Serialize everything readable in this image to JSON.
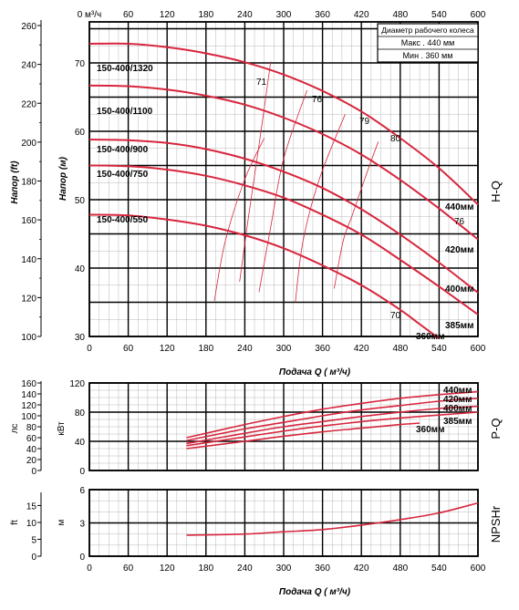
{
  "colors": {
    "curve": "#d7263d",
    "grid_major": "#000000",
    "grid_minor": "#b8b8b8",
    "text": "#000000"
  },
  "chart_data": [
    {
      "id": "hq",
      "type": "line",
      "side_label": "H-Q",
      "x_top_label": "0 м³/ч",
      "x_top_ticks": [
        "0 м³/ч",
        "60",
        "120",
        "180",
        "240",
        "300",
        "360",
        "420",
        "480",
        "540",
        "600"
      ],
      "x_ticks": [
        "0",
        "60",
        "120",
        "180",
        "240",
        "300",
        "360",
        "420",
        "480",
        "540",
        "600"
      ],
      "xlabel": "Подача Q ( м³/ч)",
      "xlim": [
        0,
        600
      ],
      "ylim_m": [
        30,
        75
      ],
      "ylabel_m": "Напор (м)",
      "ylabel_ft": "Напор (ft)",
      "yticks_m": [
        "30",
        "40",
        "50",
        "60",
        "70"
      ],
      "yticks_ft": [
        "100",
        "120",
        "140",
        "160",
        "180",
        "200",
        "220",
        "240",
        "260"
      ],
      "legend_box": {
        "title": "Диаметр рабочего колеса",
        "max": "Макс .   440 мм",
        "min": "Мин .   360 мм"
      },
      "model_labels": [
        "150-400/1320",
        "150-400/1100",
        "150-400/900",
        "150-400/750",
        "150-400/550"
      ],
      "series": [
        {
          "name": "440мм",
          "x": [
            0,
            60,
            120,
            180,
            240,
            300,
            360,
            420,
            480,
            540,
            600
          ],
          "y": [
            72.8,
            72.8,
            72.3,
            71.4,
            70.1,
            68.3,
            65.9,
            62.9,
            59.0,
            54.6,
            49.3
          ]
        },
        {
          "name": "420мм",
          "x": [
            0,
            60,
            120,
            180,
            240,
            300,
            360,
            420,
            480,
            540,
            600
          ],
          "y": [
            66.7,
            66.6,
            66.1,
            65.2,
            63.9,
            62.0,
            59.6,
            56.6,
            52.9,
            48.7,
            44.2
          ]
        },
        {
          "name": "400мм",
          "x": [
            0,
            60,
            120,
            180,
            240,
            300,
            360,
            420,
            480,
            540,
            600
          ],
          "y": [
            58.8,
            58.7,
            58.3,
            57.4,
            56.0,
            54.1,
            51.7,
            48.6,
            44.9,
            40.8,
            36.4
          ]
        },
        {
          "name": "385мм",
          "x": [
            0,
            60,
            120,
            180,
            240,
            300,
            360,
            420,
            480,
            540,
            600
          ],
          "y": [
            55.0,
            54.9,
            54.4,
            53.5,
            52.1,
            50.3,
            47.8,
            44.9,
            41.2,
            37.3,
            33.2
          ]
        },
        {
          "name": "360мм",
          "x": [
            0,
            60,
            120,
            180,
            240,
            300,
            360,
            420,
            480,
            510,
            540
          ],
          "y": [
            47.8,
            47.7,
            47.1,
            46.2,
            44.8,
            42.9,
            40.4,
            37.5,
            33.9,
            31.8,
            29.7
          ]
        }
      ],
      "efficiency_labels": [
        "71",
        "76",
        "79",
        "80",
        "76",
        "70"
      ],
      "efficiency_curves": [
        {
          "name": "70",
          "x": [
            193,
            210,
            240,
            270
          ],
          "y": [
            35.2,
            44.0,
            53.0,
            59.0
          ]
        },
        {
          "name": "71",
          "x": [
            232,
            245,
            262,
            280
          ],
          "y": [
            38.0,
            47.0,
            58.0,
            70.2
          ]
        },
        {
          "name": "76",
          "x": [
            262,
            280,
            300,
            336
          ],
          "y": [
            36.5,
            46.0,
            56.0,
            66.0
          ]
        },
        {
          "name": "79",
          "x": [
            318,
            330,
            355,
            395
          ],
          "y": [
            35.0,
            44.0,
            53.0,
            62.5
          ]
        },
        {
          "name": "80",
          "x": [
            378,
            392,
            405,
            425,
            446
          ],
          "y": [
            37.0,
            44.0,
            47.5,
            53.0,
            58.5
          ]
        }
      ]
    },
    {
      "id": "pq",
      "type": "line",
      "side_label": "P-Q",
      "xlim": [
        0,
        600
      ],
      "ylim_kw": [
        0,
        120
      ],
      "ylabel_kw": "кВт",
      "ylabel_hp": "лс",
      "yticks_kw": [
        "0",
        "40",
        "80",
        "120"
      ],
      "yticks_hp": [
        "0",
        "20",
        "40",
        "60",
        "80",
        "100",
        "120",
        "140",
        "160"
      ],
      "series": [
        {
          "name": "440мм",
          "x": [
            150,
            240,
            300,
            360,
            420,
            480,
            540,
            600
          ],
          "y": [
            45,
            63,
            74,
            84,
            92,
            99,
            104,
            108
          ]
        },
        {
          "name": "420мм",
          "x": [
            150,
            240,
            300,
            360,
            420,
            480,
            540,
            600
          ],
          "y": [
            41,
            57,
            66,
            75,
            83,
            89,
            95,
            99
          ]
        },
        {
          "name": "400мм",
          "x": [
            150,
            240,
            300,
            360,
            420,
            480,
            540,
            600
          ],
          "y": [
            37,
            51,
            60,
            67,
            74,
            80,
            85,
            88
          ]
        },
        {
          "name": "385мм",
          "x": [
            150,
            240,
            300,
            360,
            420,
            480,
            540,
            600
          ],
          "y": [
            34,
            46,
            54,
            61,
            67,
            72,
            76,
            80
          ]
        },
        {
          "name": "360мм",
          "x": [
            150,
            240,
            300,
            360,
            420,
            480,
            510
          ],
          "y": [
            30,
            40,
            47,
            53,
            58,
            63,
            65
          ]
        }
      ],
      "series_labels": [
        "440мм",
        "420мм",
        "400мм",
        "385мм",
        "360мм"
      ]
    },
    {
      "id": "npsh",
      "type": "line",
      "side_label": "NPSHr",
      "xlabel": "Подача Q ( м³/ч)",
      "xlim": [
        0,
        600
      ],
      "ylim_m": [
        0,
        6
      ],
      "ylabel_m": "м",
      "ylabel_ft": "ft",
      "x_ticks": [
        "0",
        "60",
        "120",
        "180",
        "240",
        "300",
        "360",
        "420",
        "480",
        "540",
        "600"
      ],
      "yticks_m": [
        "0",
        "3",
        "6"
      ],
      "yticks_ft": [
        "0",
        "5",
        "10",
        "15"
      ],
      "series": [
        {
          "name": "NPSHr",
          "x": [
            150,
            240,
            300,
            360,
            420,
            480,
            540,
            600
          ],
          "y": [
            1.9,
            2.0,
            2.2,
            2.4,
            2.8,
            3.3,
            3.9,
            4.8
          ]
        }
      ]
    }
  ]
}
